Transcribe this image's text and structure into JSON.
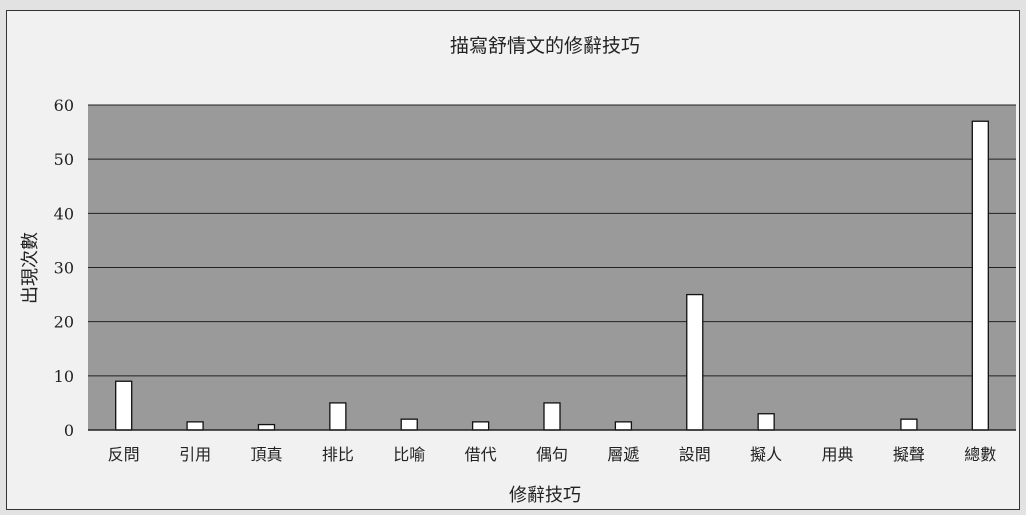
{
  "chart_data": {
    "type": "bar",
    "title": "描寫舒情文的修辭技巧",
    "xlabel": "修辭技巧",
    "ylabel": "出現次數",
    "categories": [
      "反問",
      "引用",
      "頂真",
      "排比",
      "比喻",
      "借代",
      "偶句",
      "層遞",
      "設問",
      "擬人",
      "用典",
      "擬聲",
      "總數"
    ],
    "values": [
      9,
      1.5,
      1,
      5,
      2,
      1.5,
      5,
      1.5,
      25,
      3,
      0,
      2,
      57
    ],
    "ylim": [
      0,
      60
    ],
    "yticks": [
      0,
      10,
      20,
      30,
      40,
      50,
      60
    ],
    "grid": true,
    "colors": {
      "plot_background": "#9a9a9a",
      "bar_fill": "#ffffff",
      "bar_stroke": "#111111",
      "gridline": "#222222"
    }
  }
}
